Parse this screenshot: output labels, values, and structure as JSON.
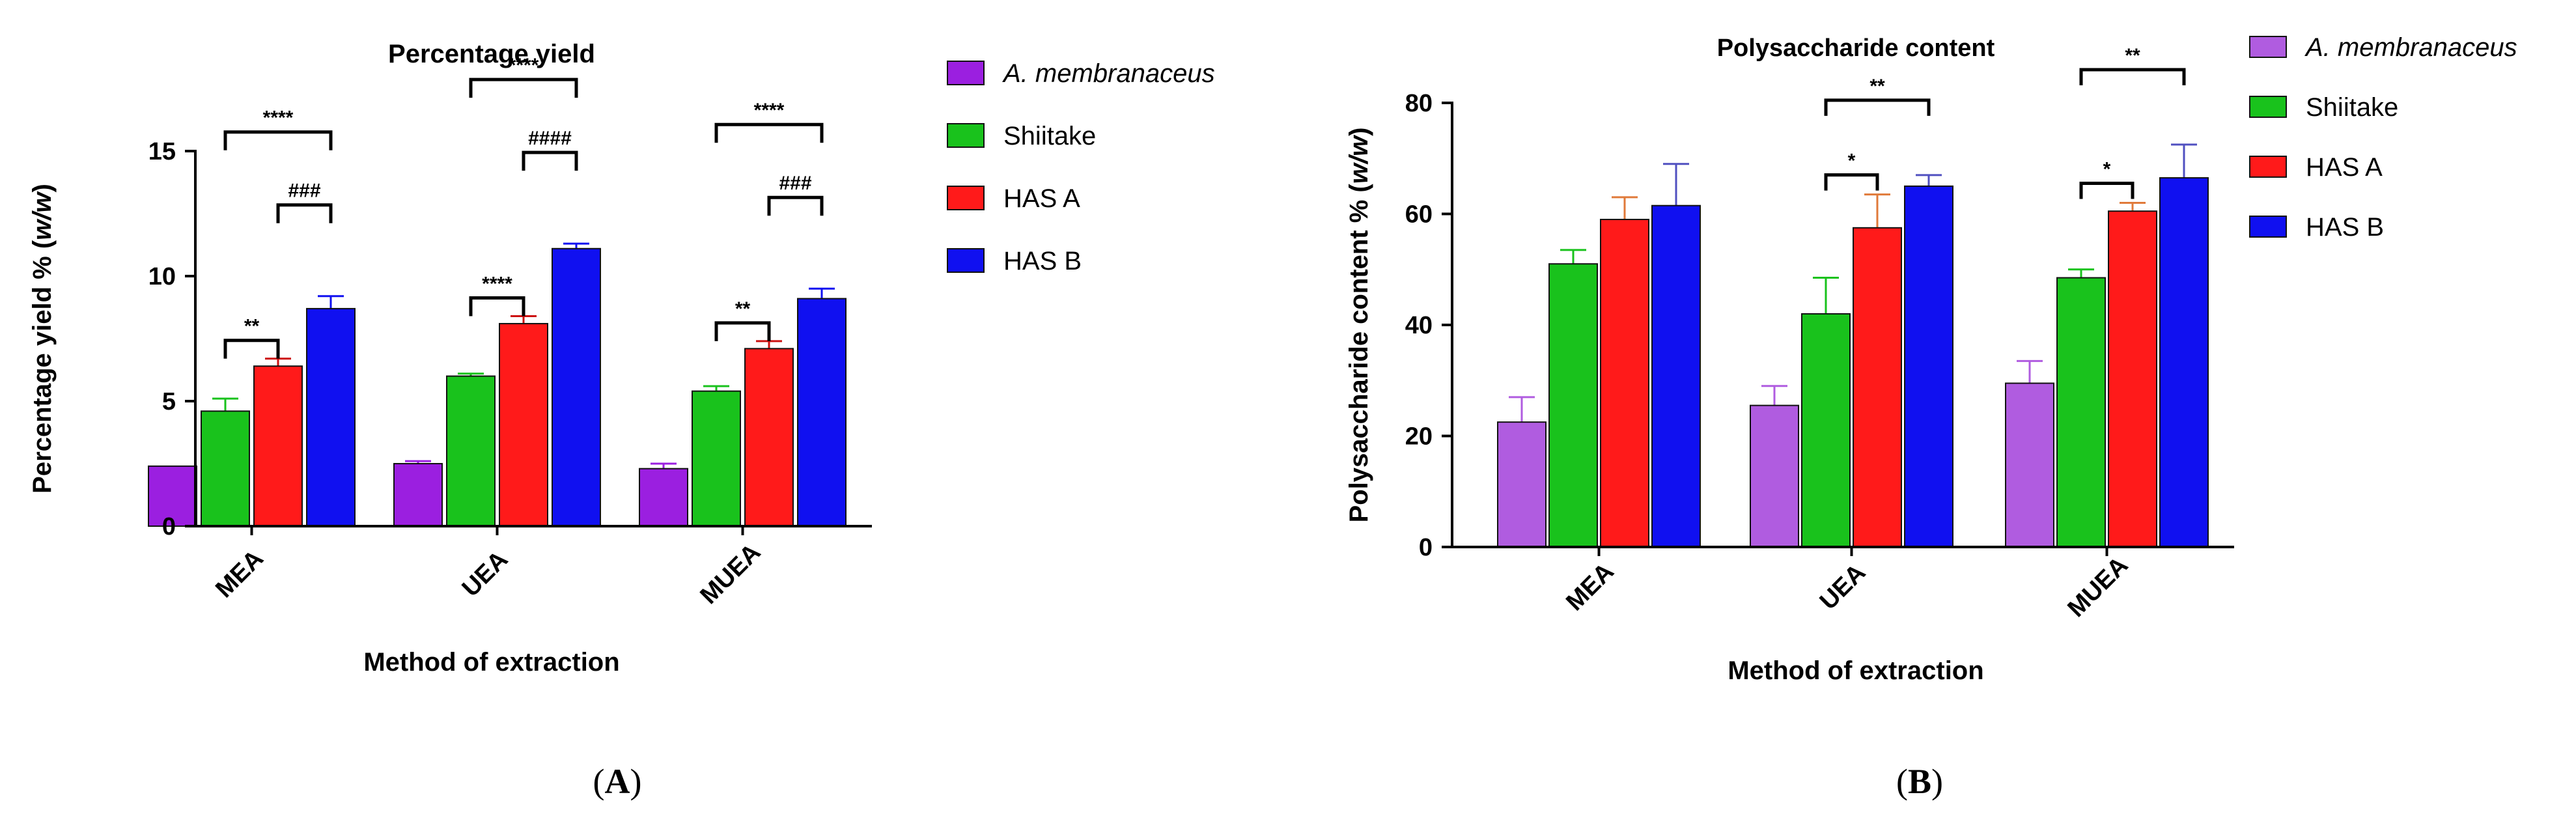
{
  "chart_data": [
    {
      "type": "bar",
      "panel_label": "A",
      "title": "Percentage yield",
      "xlabel": "Method of extraction",
      "ylabel_prefix": "Percentage yield % (",
      "ylabel_unit": "w/w",
      "ylabel_suffix": ")",
      "ylim": [
        0,
        15
      ],
      "yticks": [
        0,
        5,
        10,
        15
      ],
      "categories": [
        "MEA",
        "UEA",
        "MUEA"
      ],
      "series": [
        {
          "name": "A. membranaceus",
          "italic": true,
          "color": "#9b1fe0",
          "errcolor": "#9b1fe0",
          "values": [
            2.4,
            2.5,
            2.3
          ],
          "errors": [
            0.0,
            0.1,
            0.2
          ]
        },
        {
          "name": "Shiitake",
          "italic": false,
          "color": "#19c21c",
          "errcolor": "#19c21c",
          "values": [
            4.6,
            6.0,
            5.4
          ],
          "errors": [
            0.5,
            0.1,
            0.2
          ]
        },
        {
          "name": "HAS A",
          "italic": false,
          "color": "#ff1a1a",
          "errcolor": "#cc1111",
          "values": [
            6.4,
            8.1,
            7.1
          ],
          "errors": [
            0.3,
            0.3,
            0.3
          ]
        },
        {
          "name": "HAS B",
          "italic": false,
          "color": "#1010f0",
          "errcolor": "#1010f0",
          "values": [
            8.7,
            11.1,
            9.1
          ],
          "errors": [
            0.5,
            0.2,
            0.4
          ]
        }
      ],
      "significance": [
        {
          "category": 0,
          "from": 1,
          "to": 2,
          "level": 1,
          "label": "**"
        },
        {
          "category": 0,
          "from": 2,
          "to": 3,
          "level": 2,
          "label": "###"
        },
        {
          "category": 0,
          "from": 1,
          "to": 3,
          "level": 3,
          "label": "****"
        },
        {
          "category": 1,
          "from": 1,
          "to": 2,
          "level": 1,
          "label": "****"
        },
        {
          "category": 1,
          "from": 2,
          "to": 3,
          "level": 2,
          "label": "####"
        },
        {
          "category": 1,
          "from": 1,
          "to": 3,
          "level": 3,
          "label": "****"
        },
        {
          "category": 2,
          "from": 1,
          "to": 2,
          "level": 1,
          "label": "**"
        },
        {
          "category": 2,
          "from": 2,
          "to": 3,
          "level": 2,
          "label": "###"
        },
        {
          "category": 2,
          "from": 1,
          "to": 3,
          "level": 3,
          "label": "****"
        }
      ]
    },
    {
      "type": "bar",
      "panel_label": "B",
      "title": "Polysaccharide content",
      "xlabel": "Method of extraction",
      "ylabel_prefix": "Polysaccharide content % (",
      "ylabel_unit": "w/w",
      "ylabel_suffix": ")",
      "ylim": [
        0,
        80
      ],
      "yticks": [
        0,
        20,
        40,
        60,
        80
      ],
      "categories": [
        "MEA",
        "UEA",
        "MUEA"
      ],
      "series": [
        {
          "name": "A. membranaceus",
          "italic": true,
          "color": "#b05ce0",
          "errcolor": "#b05ce0",
          "values": [
            22.5,
            25.5,
            29.5
          ],
          "errors": [
            4.5,
            3.5,
            4.0
          ]
        },
        {
          "name": "Shiitake",
          "italic": false,
          "color": "#19c21c",
          "errcolor": "#19c21c",
          "values": [
            51,
            42,
            48.5
          ],
          "errors": [
            2.5,
            6.5,
            1.5
          ]
        },
        {
          "name": "HAS A",
          "italic": false,
          "color": "#ff1a1a",
          "errcolor": "#e07a3a",
          "values": [
            59,
            57.5,
            60.5
          ],
          "errors": [
            4.0,
            6.0,
            1.5
          ]
        },
        {
          "name": "HAS B",
          "italic": false,
          "color": "#1010f0",
          "errcolor": "#5050c0",
          "values": [
            61.5,
            65,
            66.5
          ],
          "errors": [
            7.5,
            2.0,
            6.0
          ]
        }
      ],
      "significance": [
        {
          "category": 1,
          "from": 1,
          "to": 2,
          "level": 1,
          "label": "*"
        },
        {
          "category": 1,
          "from": 1,
          "to": 3,
          "level": 2,
          "label": "**"
        },
        {
          "category": 2,
          "from": 1,
          "to": 2,
          "level": 1,
          "label": "*"
        },
        {
          "category": 2,
          "from": 1,
          "to": 3,
          "level": 2,
          "label": "**"
        }
      ]
    }
  ]
}
